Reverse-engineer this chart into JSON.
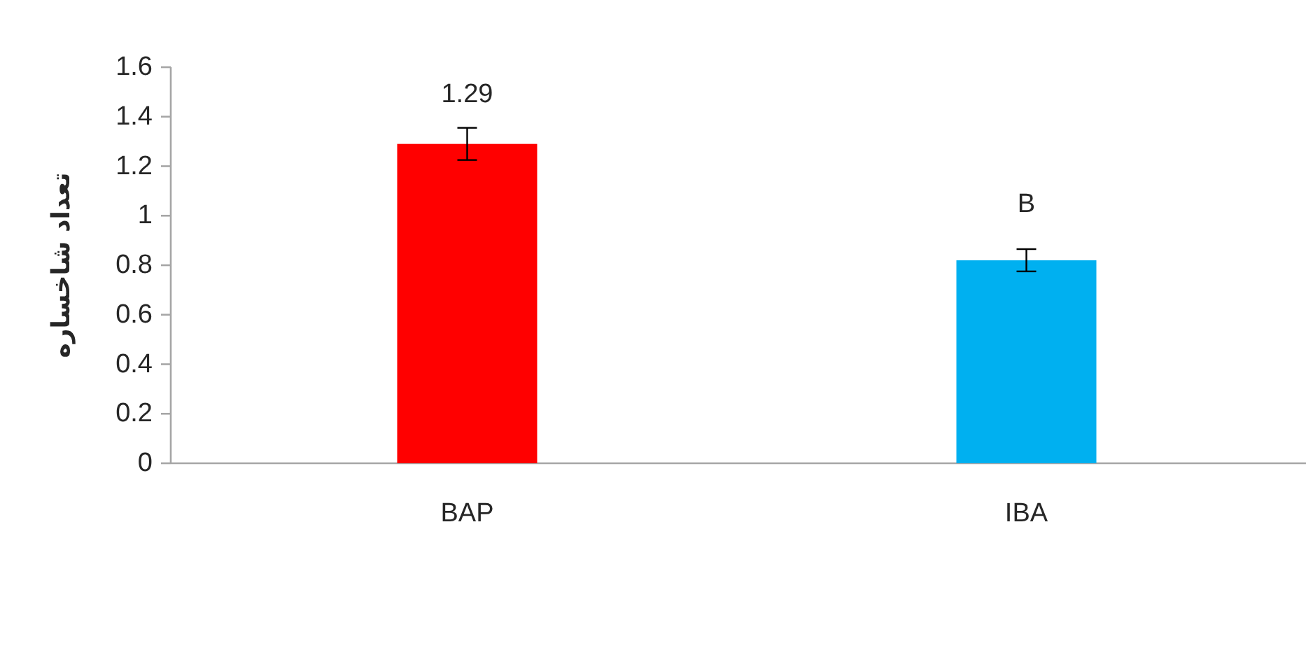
{
  "chart_data": {
    "type": "bar",
    "ylabel": "تعداد شاخساره",
    "categories": [
      "BAP",
      "IBA"
    ],
    "values": [
      1.29,
      0.82
    ],
    "colors": [
      "#ff0000",
      "#00b0f0"
    ],
    "errors": [
      0.065,
      0.045
    ],
    "value_labels": [
      "1.29",
      null
    ],
    "annotations": [
      {
        "text": "B",
        "x": "IBA",
        "y": 0.82
      }
    ],
    "ylim": [
      0,
      1.6
    ],
    "yticks": [
      0,
      0.2,
      0.4,
      0.6,
      0.8,
      1,
      1.2,
      1.4,
      1.6
    ],
    "grid": false
  }
}
